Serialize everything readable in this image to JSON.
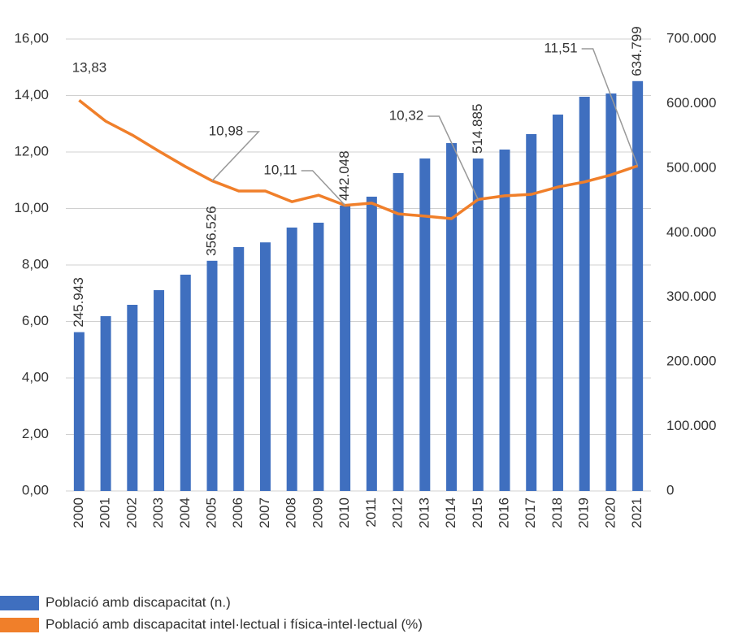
{
  "chart_data": {
    "type": "bar-line",
    "categories": [
      "2000",
      "2001",
      "2002",
      "2003",
      "2004",
      "2005",
      "2006",
      "2007",
      "2008",
      "2009",
      "2010",
      "2011",
      "2012",
      "2013",
      "2014",
      "2015",
      "2016",
      "2017",
      "2018",
      "2019",
      "2020",
      "2021"
    ],
    "series": [
      {
        "name": "Població amb discapacitat (n.)",
        "type": "bar",
        "axis": "y2",
        "color": "#3f6fbf",
        "values": [
          245943,
          270700,
          288300,
          311000,
          335000,
          356526,
          377700,
          385000,
          408000,
          415500,
          442048,
          455800,
          492300,
          515000,
          538800,
          514885,
          528800,
          552700,
          583000,
          610600,
          615600,
          634799
        ],
        "value_labels": [
          "245.943",
          null,
          null,
          null,
          null,
          "356.526",
          null,
          null,
          null,
          null,
          "442.048",
          null,
          null,
          null,
          null,
          "514.885",
          null,
          null,
          null,
          null,
          null,
          "634.799"
        ]
      },
      {
        "name": "Població amb discapacitat intel·lectual i física-intel·lectual (%)",
        "type": "line",
        "axis": "y",
        "color": "#f07f2a",
        "values": [
          13.83,
          13.09,
          12.6,
          12.03,
          11.48,
          10.98,
          10.62,
          10.62,
          10.24,
          10.47,
          10.11,
          10.19,
          9.81,
          9.73,
          9.64,
          10.32,
          10.45,
          10.5,
          10.76,
          10.94,
          11.19,
          11.51
        ],
        "value_labels": [
          "13,83",
          null,
          null,
          null,
          null,
          "10,98",
          null,
          null,
          null,
          null,
          "10,11",
          null,
          null,
          null,
          null,
          "10,32",
          null,
          null,
          null,
          null,
          null,
          "11,51"
        ]
      }
    ],
    "ylim": [
      0,
      16
    ],
    "yticks": [
      {
        "value": 0,
        "label": "0,00"
      },
      {
        "value": 2,
        "label": "2,00"
      },
      {
        "value": 4,
        "label": "4,00"
      },
      {
        "value": 6,
        "label": "6,00"
      },
      {
        "value": 8,
        "label": "8,00"
      },
      {
        "value": 10,
        "label": "10,00"
      },
      {
        "value": 12,
        "label": "12,00"
      },
      {
        "value": 14,
        "label": "14,00"
      },
      {
        "value": 16,
        "label": "16,00"
      }
    ],
    "y2lim": [
      0,
      700000
    ],
    "y2ticks": [
      0,
      {
        "value": 100000,
        "label": "100.000"
      },
      {
        "value": 200000,
        "label": "200.000"
      },
      {
        "value": 300000,
        "label": "300.000"
      },
      {
        "value": 400000,
        "label": "400.000"
      },
      {
        "value": 500000,
        "label": "500.000"
      },
      {
        "value": 600000,
        "label": "600.000"
      },
      {
        "value": 700000,
        "label": "700.000"
      }
    ],
    "grid": true,
    "legend": "bottom-left"
  }
}
